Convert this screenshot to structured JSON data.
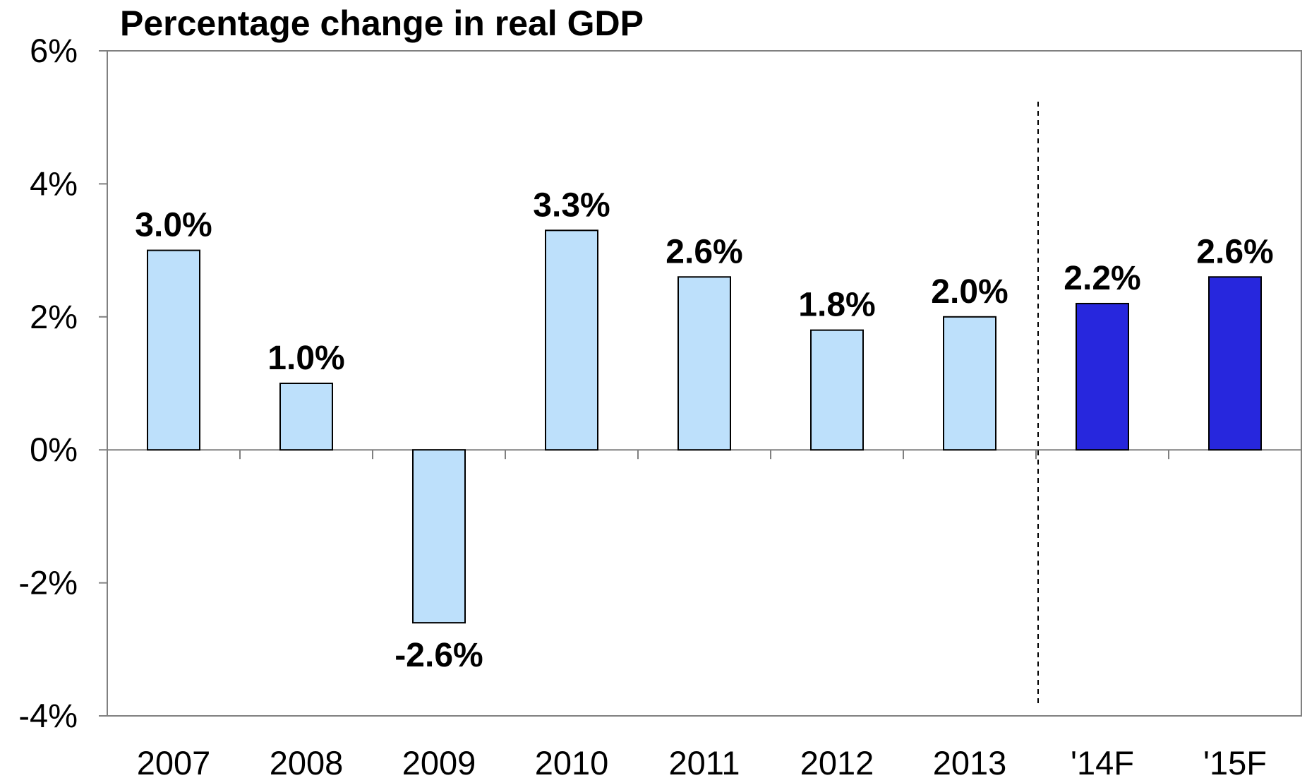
{
  "chart_data": {
    "type": "bar",
    "title": "Percentage change in real GDP",
    "xlabel": "",
    "ylabel": "",
    "categories": [
      "2007",
      "2008",
      "2009",
      "2010",
      "2011",
      "2012",
      "2013",
      "'14F",
      "'15F"
    ],
    "values": [
      3.0,
      1.0,
      -2.6,
      3.3,
      2.6,
      1.8,
      2.0,
      2.2,
      2.6
    ],
    "data_labels": [
      "3.0%",
      "1.0%",
      "-2.6%",
      "3.3%",
      "2.6%",
      "1.8%",
      "2.0%",
      "2.2%",
      "2.6%"
    ],
    "forecast": [
      false,
      false,
      false,
      false,
      false,
      false,
      false,
      true,
      true
    ],
    "ylim": [
      -4,
      6
    ],
    "yticks": [
      -4,
      -2,
      0,
      2,
      4,
      6
    ],
    "ytick_labels": [
      "-4%",
      "-2%",
      "0%",
      "2%",
      "4%",
      "6%"
    ],
    "grid": false,
    "legend": false,
    "colors": {
      "actual": "#BDE0FB",
      "forecast": "#2727DD",
      "bar_stroke": "#000000",
      "axis": "#808080",
      "separator": "#000000"
    },
    "separator_between": [
      "2013",
      "'14F"
    ]
  }
}
